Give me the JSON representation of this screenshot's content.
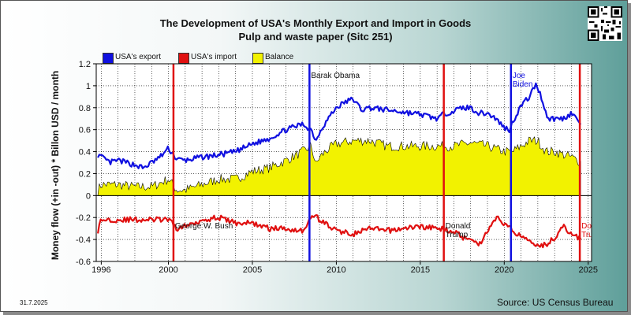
{
  "page": {
    "title_line1": "The Development of USA's Monthly Export and Import in Goods",
    "title_line2": "Pulp and waste paper (Sitc 251)",
    "date": "31.7.2025",
    "source": "Source: US Census Bureau"
  },
  "chart_data": {
    "type": "line",
    "ylabel": "Money flow (+in -out) * Billon USD / month",
    "xlabel": "",
    "ylim": [
      -0.6,
      1.2
    ],
    "xlim": [
      1995.7,
      2025.2
    ],
    "y_ticks": [
      -0.6,
      -0.4,
      -0.2,
      0,
      0.2,
      0.4,
      0.6,
      0.8,
      1,
      1.2
    ],
    "x_ticks": [
      1996,
      2000,
      2005,
      2010,
      2015,
      2020,
      2025
    ],
    "grid": true,
    "legend_placement": "top-left",
    "colors": {
      "export": "#1010e0",
      "import": "#e01010",
      "balance": "#f2f200"
    },
    "legend": [
      "USA's export",
      "USA's import",
      "Balance"
    ],
    "series": [
      {
        "name": "USA's export",
        "x": [
          1995.8,
          1996.5,
          1997,
          1998,
          1998.5,
          1999,
          1999.5,
          2000,
          2000.5,
          2001,
          2002,
          2003,
          2004,
          2005,
          2006,
          2007,
          2008,
          2008.5,
          2008.8,
          2009,
          2009.5,
          2010,
          2010.5,
          2011,
          2011.5,
          2012,
          2013,
          2014,
          2015,
          2016,
          2016.5,
          2017,
          2017.5,
          2018,
          2018.5,
          2019,
          2019.5,
          2020,
          2020.3,
          2020.6,
          2021,
          2021.5,
          2021.9,
          2022.2,
          2022.6,
          2023,
          2023.5,
          2024,
          2024.3,
          2024.6
        ],
        "values": [
          0.37,
          0.3,
          0.32,
          0.28,
          0.25,
          0.3,
          0.35,
          0.43,
          0.33,
          0.32,
          0.35,
          0.37,
          0.4,
          0.47,
          0.52,
          0.6,
          0.65,
          0.6,
          0.5,
          0.58,
          0.7,
          0.8,
          0.85,
          0.88,
          0.78,
          0.8,
          0.78,
          0.76,
          0.74,
          0.7,
          0.75,
          0.77,
          0.8,
          0.8,
          0.75,
          0.75,
          0.7,
          0.62,
          0.6,
          0.7,
          0.82,
          0.9,
          1.02,
          0.9,
          0.7,
          0.7,
          0.7,
          0.75,
          0.7,
          0.65
        ]
      },
      {
        "name": "USA's import",
        "x": [
          1995.8,
          1996,
          1997,
          1998,
          1999,
          2000,
          2000.5,
          2001,
          2002,
          2003,
          2004,
          2005,
          2006,
          2007,
          2008,
          2008.3,
          2008.7,
          2009,
          2010,
          2011,
          2012,
          2013,
          2014,
          2015,
          2016,
          2017,
          2017.5,
          2018,
          2018.5,
          2019,
          2019.5,
          2020,
          2020.5,
          2021,
          2021.5,
          2022,
          2022.5,
          2023,
          2023.5,
          2024,
          2024.6
        ],
        "values": [
          -0.32,
          -0.22,
          -0.22,
          -0.22,
          -0.22,
          -0.22,
          -0.3,
          -0.28,
          -0.22,
          -0.2,
          -0.25,
          -0.25,
          -0.3,
          -0.3,
          -0.32,
          -0.25,
          -0.17,
          -0.22,
          -0.32,
          -0.35,
          -0.3,
          -0.32,
          -0.3,
          -0.28,
          -0.3,
          -0.32,
          -0.38,
          -0.38,
          -0.45,
          -0.32,
          -0.2,
          -0.25,
          -0.32,
          -0.37,
          -0.4,
          -0.45,
          -0.45,
          -0.38,
          -0.28,
          -0.35,
          -0.4
        ]
      },
      {
        "name": "Balance",
        "x": [
          1995.8,
          1996,
          1997,
          1998,
          1999,
          2000,
          2000.5,
          2001,
          2002,
          2003,
          2004,
          2005,
          2006,
          2007,
          2008,
          2008.5,
          2008.8,
          2009,
          2009.5,
          2010,
          2011,
          2012,
          2013,
          2014,
          2015,
          2016,
          2017,
          2018,
          2019,
          2020,
          2020.5,
          2021,
          2021.5,
          2022,
          2022.5,
          2023,
          2024,
          2024.6
        ],
        "values": [
          0.05,
          0.1,
          0.1,
          0.08,
          0.08,
          0.15,
          0.05,
          0.05,
          0.1,
          0.15,
          0.15,
          0.22,
          0.25,
          0.32,
          0.4,
          0.45,
          0.28,
          0.35,
          0.42,
          0.47,
          0.5,
          0.5,
          0.45,
          0.45,
          0.45,
          0.45,
          0.45,
          0.48,
          0.45,
          0.4,
          0.4,
          0.45,
          0.5,
          0.5,
          0.4,
          0.4,
          0.35,
          0.3
        ]
      }
    ],
    "events": [
      {
        "x": 2000.3,
        "color": "#e01010",
        "label": "George W. Bush",
        "label_y": -0.3
      },
      {
        "x": 2008.4,
        "color": "#1010e0",
        "label": "Barak Obama",
        "label_y": 1.07
      },
      {
        "x": 2016.4,
        "color": "#e01010",
        "label": "Donald Trump",
        "label_y": -0.3
      },
      {
        "x": 2020.4,
        "color": "#1010e0",
        "label": "Joe Biden",
        "label_y": 1.07
      },
      {
        "x": 2024.5,
        "color": "#e01010",
        "label": "Donald Trump",
        "label_y": -0.3
      }
    ]
  }
}
